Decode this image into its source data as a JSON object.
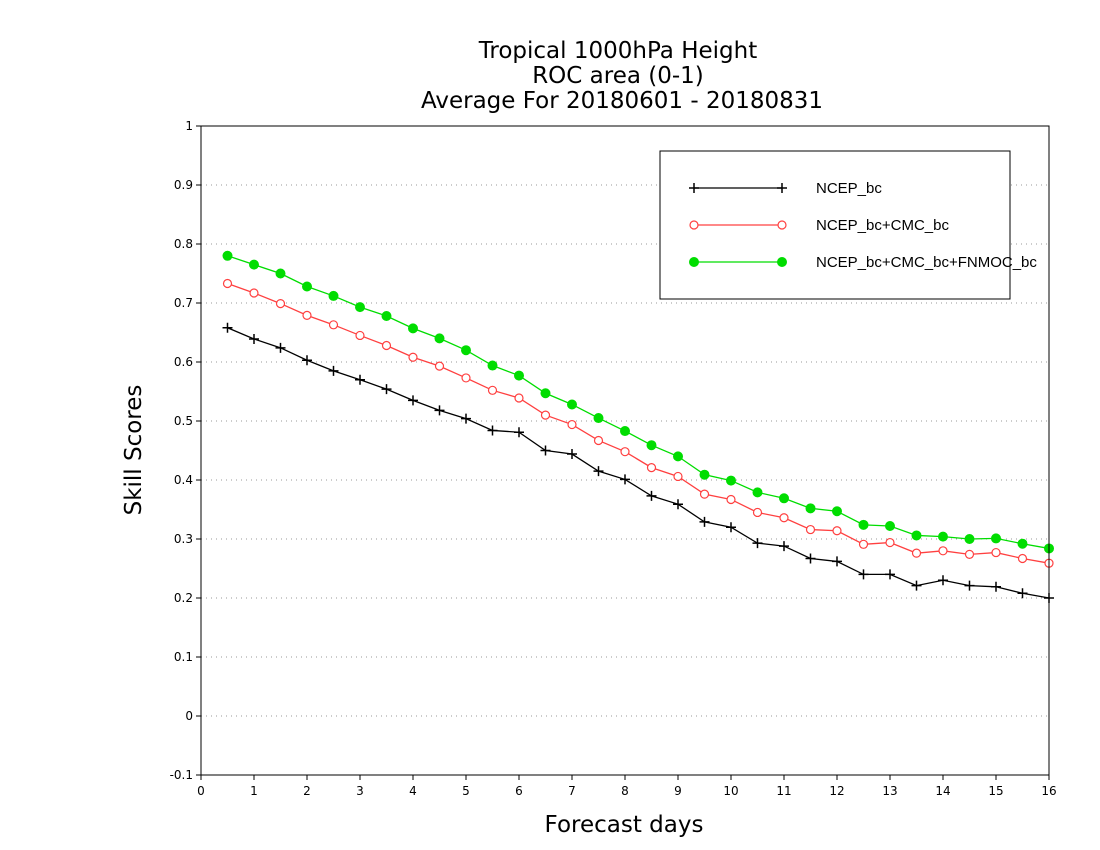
{
  "chart_data": {
    "type": "line",
    "title": [
      "Tropical 1000hPa Height",
      "ROC area (0-1)",
      "Average For 20180601 - 20180831"
    ],
    "xlabel": "Forecast days",
    "ylabel": "Skill Scores",
    "xlim": [
      0,
      16
    ],
    "ylim": [
      -0.1,
      1
    ],
    "xticks": [
      0,
      1,
      2,
      3,
      4,
      5,
      6,
      7,
      8,
      9,
      10,
      11,
      12,
      13,
      14,
      15,
      16
    ],
    "yticks": [
      -0.1,
      0,
      0.1,
      0.2,
      0.3,
      0.4,
      0.5,
      0.6,
      0.7,
      0.8,
      0.9,
      1
    ],
    "ytick_labels": [
      "-0.1",
      "0",
      "0.1",
      "0.2",
      "0.3",
      "0.4",
      "0.5",
      "0.6",
      "0.7",
      "0.8",
      "0.9",
      "1"
    ],
    "grid": "horizontal dotted",
    "legend_position": "top-right",
    "x": [
      0.5,
      1,
      1.5,
      2,
      2.5,
      3,
      3.5,
      4,
      4.5,
      5,
      5.5,
      6,
      6.5,
      7,
      7.5,
      8,
      8.5,
      9,
      9.5,
      10,
      10.5,
      11,
      11.5,
      12,
      12.5,
      13,
      13.5,
      14,
      14.5,
      15,
      15.5,
      16
    ],
    "series": [
      {
        "name": "NCEP_bc",
        "color": "#000000",
        "marker": "plus",
        "values": [
          0.658,
          0.639,
          0.624,
          0.603,
          0.585,
          0.57,
          0.554,
          0.535,
          0.518,
          0.504,
          0.484,
          0.481,
          0.45,
          0.444,
          0.415,
          0.401,
          0.373,
          0.359,
          0.329,
          0.32,
          0.293,
          0.288,
          0.267,
          0.262,
          0.24,
          0.24,
          0.221,
          0.23,
          0.221,
          0.219,
          0.208,
          0.2
        ]
      },
      {
        "name": "NCEP_bc+CMC_bc",
        "color": "#ff4040",
        "marker": "open-circle",
        "values": [
          0.733,
          0.717,
          0.699,
          0.679,
          0.663,
          0.645,
          0.628,
          0.608,
          0.593,
          0.573,
          0.552,
          0.539,
          0.51,
          0.494,
          0.467,
          0.448,
          0.421,
          0.406,
          0.376,
          0.367,
          0.345,
          0.336,
          0.316,
          0.314,
          0.291,
          0.294,
          0.276,
          0.28,
          0.274,
          0.277,
          0.267,
          0.259
        ]
      },
      {
        "name": "NCEP_bc+CMC_bc+FNMOC_bc",
        "color": "#00dd00",
        "marker": "filled-circle",
        "values": [
          0.78,
          0.765,
          0.75,
          0.728,
          0.712,
          0.693,
          0.678,
          0.657,
          0.64,
          0.62,
          0.594,
          0.577,
          0.547,
          0.528,
          0.505,
          0.483,
          0.459,
          0.44,
          0.409,
          0.399,
          0.379,
          0.369,
          0.352,
          0.347,
          0.324,
          0.322,
          0.306,
          0.304,
          0.3,
          0.301,
          0.292,
          0.284
        ]
      }
    ]
  }
}
